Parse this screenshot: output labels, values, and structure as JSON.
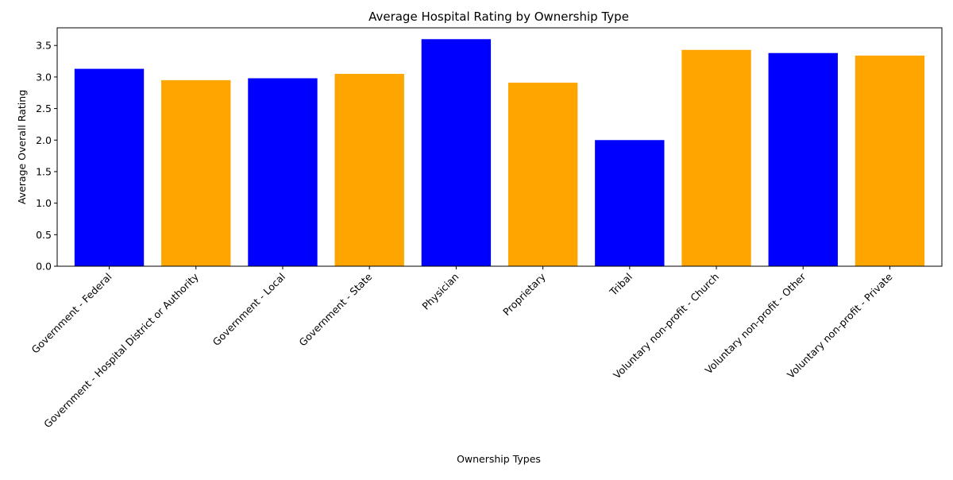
{
  "chart_data": {
    "type": "bar",
    "title": "Average Hospital Rating by Ownership Type",
    "xlabel": "Ownership Types",
    "ylabel": "Average Overall Rating",
    "categories": [
      "Government - Federal",
      "Government - Hospital District or Authority",
      "Government - Local",
      "Government - State",
      "Physician",
      "Proprietary",
      "Tribal",
      "Voluntary non-profit - Church",
      "Voluntary non-profit - Other",
      "Voluntary non-profit - Private"
    ],
    "values": [
      3.13,
      2.95,
      2.98,
      3.05,
      3.6,
      2.91,
      2.0,
      3.43,
      3.38,
      3.34
    ],
    "bar_colors": [
      "#0000ff",
      "#ffa500",
      "#0000ff",
      "#ffa500",
      "#0000ff",
      "#ffa500",
      "#0000ff",
      "#ffa500",
      "#0000ff",
      "#ffa500"
    ],
    "ylim": [
      0,
      3.78
    ],
    "yticks": [
      "0.0",
      "0.5",
      "1.0",
      "1.5",
      "2.0",
      "2.5",
      "3.0",
      "3.5"
    ],
    "grid": false,
    "legend": "none"
  }
}
